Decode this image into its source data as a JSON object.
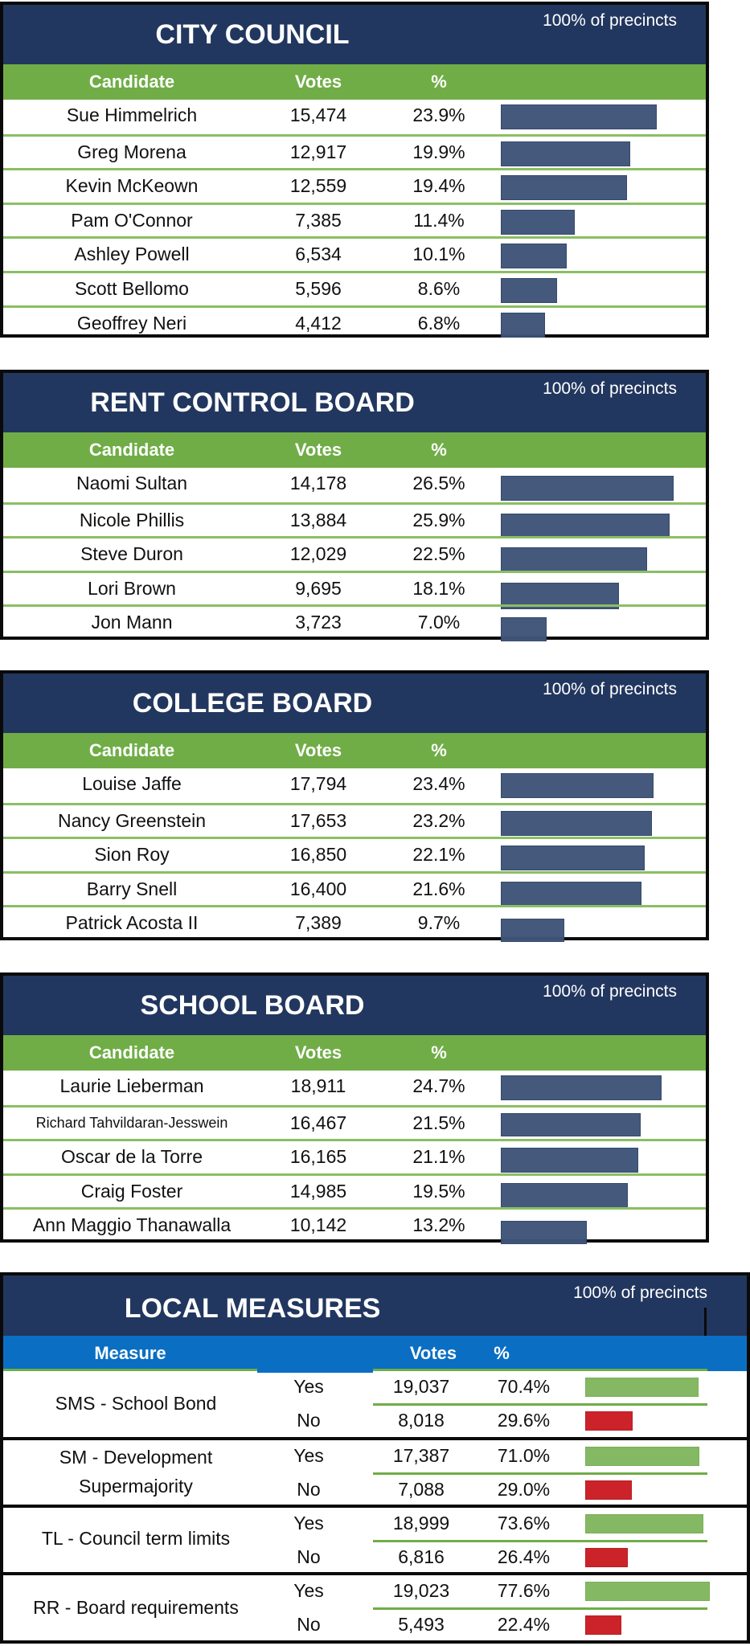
{
  "colors": {
    "title_band": "#22375f",
    "column_header": "#70ad47",
    "measures_header": "#0a6fc2",
    "bar": "#3f5479",
    "yes_bar": "#84b863",
    "no_bar": "#cc2229"
  },
  "races": [
    {
      "title": "CITY COUNCIL",
      "reporting": "100% of precincts",
      "headers": {
        "candidate": "Candidate",
        "votes": "Votes",
        "pct": "%"
      },
      "rows": [
        {
          "name": "Sue Himmelrich",
          "votes": "15,474",
          "pct": "23.9%",
          "pct_value": 23.9
        },
        {
          "name": "Greg Morena",
          "votes": "12,917",
          "pct": "19.9%",
          "pct_value": 19.9
        },
        {
          "name": "Kevin McKeown",
          "votes": "12,559",
          "pct": "19.4%",
          "pct_value": 19.4
        },
        {
          "name": "Pam O'Connor",
          "votes": "7,385",
          "pct": "11.4%",
          "pct_value": 11.4
        },
        {
          "name": "Ashley Powell",
          "votes": "6,534",
          "pct": "10.1%",
          "pct_value": 10.1
        },
        {
          "name": "Scott Bellomo",
          "votes": "5,596",
          "pct": "8.6%",
          "pct_value": 8.6
        },
        {
          "name": "Geoffrey Neri",
          "votes": "4,412",
          "pct": "6.8%",
          "pct_value": 6.8
        }
      ]
    },
    {
      "title": "RENT CONTROL BOARD",
      "reporting": "100% of precincts",
      "headers": {
        "candidate": "Candidate",
        "votes": "Votes",
        "pct": "%"
      },
      "rows": [
        {
          "name": "Naomi Sultan",
          "votes": "14,178",
          "pct": "26.5%",
          "pct_value": 26.5
        },
        {
          "name": "Nicole Phillis",
          "votes": "13,884",
          "pct": "25.9%",
          "pct_value": 25.9
        },
        {
          "name": "Steve Duron",
          "votes": "12,029",
          "pct": "22.5%",
          "pct_value": 22.5
        },
        {
          "name": "Lori Brown",
          "votes": "9,695",
          "pct": "18.1%",
          "pct_value": 18.1
        },
        {
          "name": "Jon Mann",
          "votes": "3,723",
          "pct": "7.0%",
          "pct_value": 7.0
        }
      ]
    },
    {
      "title": "COLLEGE BOARD",
      "reporting": "100% of precincts",
      "headers": {
        "candidate": "Candidate",
        "votes": "Votes",
        "pct": "%"
      },
      "rows": [
        {
          "name": "Louise Jaffe",
          "votes": "17,794",
          "pct": "23.4%",
          "pct_value": 23.4
        },
        {
          "name": "Nancy Greenstein",
          "votes": "17,653",
          "pct": "23.2%",
          "pct_value": 23.2
        },
        {
          "name": "Sion Roy",
          "votes": "16,850",
          "pct": "22.1%",
          "pct_value": 22.1
        },
        {
          "name": "Barry Snell",
          "votes": "16,400",
          "pct": "21.6%",
          "pct_value": 21.6
        },
        {
          "name": "Patrick Acosta II",
          "votes": "7,389",
          "pct": "9.7%",
          "pct_value": 9.7
        }
      ]
    },
    {
      "title": "SCHOOL BOARD",
      "reporting": "100% of precincts",
      "headers": {
        "candidate": "Candidate",
        "votes": "Votes",
        "pct": "%"
      },
      "rows": [
        {
          "name": "Laurie Lieberman",
          "votes": "18,911",
          "pct": "24.7%",
          "pct_value": 24.7
        },
        {
          "name": "Richard Tahvildaran-Jesswein",
          "votes": "16,467",
          "pct": "21.5%",
          "pct_value": 21.5
        },
        {
          "name": "Oscar de la Torre",
          "votes": "16,165",
          "pct": "21.1%",
          "pct_value": 21.1
        },
        {
          "name": "Craig Foster",
          "votes": "14,985",
          "pct": "19.5%",
          "pct_value": 19.5
        },
        {
          "name": "Ann Maggio Thanawalla",
          "votes": "10,142",
          "pct": "13.2%",
          "pct_value": 13.2
        }
      ]
    }
  ],
  "measures": {
    "title": "LOCAL MEASURES",
    "reporting": "100% of precincts",
    "headers": {
      "measure": "Measure",
      "votes": "Votes",
      "pct": "%"
    },
    "items": [
      {
        "name_lines": [
          "SMS - School Bond"
        ],
        "yes": {
          "label": "Yes",
          "votes": "19,037",
          "pct": "70.4%",
          "pct_value": 70.4
        },
        "no": {
          "label": "No",
          "votes": "8,018",
          "pct": "29.6%",
          "pct_value": 29.6
        }
      },
      {
        "name_lines": [
          "SM - Development",
          "Supermajority"
        ],
        "yes": {
          "label": "Yes",
          "votes": "17,387",
          "pct": "71.0%",
          "pct_value": 71.0
        },
        "no": {
          "label": "No",
          "votes": "7,088",
          "pct": "29.0%",
          "pct_value": 29.0
        }
      },
      {
        "name_lines": [
          "TL - Council term limits"
        ],
        "yes": {
          "label": "Yes",
          "votes": "18,999",
          "pct": "73.6%",
          "pct_value": 73.6
        },
        "no": {
          "label": "No",
          "votes": "6,816",
          "pct": "26.4%",
          "pct_value": 26.4
        }
      },
      {
        "name_lines": [
          "RR - Board requirements"
        ],
        "yes": {
          "label": "Yes",
          "votes": "19,023",
          "pct": "77.6%",
          "pct_value": 77.6
        },
        "no": {
          "label": "No",
          "votes": "5,493",
          "pct": "22.4%",
          "pct_value": 22.4
        }
      }
    ]
  }
}
